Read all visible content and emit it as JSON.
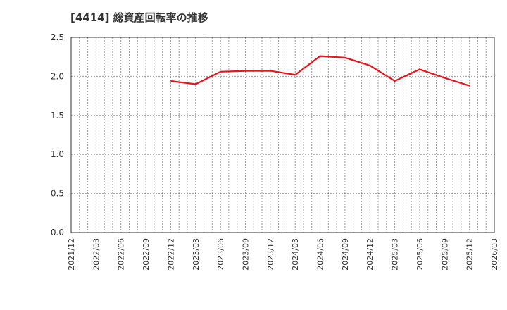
{
  "title": "[4414]  総資産回転率の推移",
  "chart_data": {
    "type": "line",
    "title": "[4414]  総資産回転率の推移",
    "xlabel": "",
    "ylabel": "",
    "ylim": [
      0,
      2.5
    ],
    "yticks": [
      "0.0",
      "0.5",
      "1.0",
      "1.5",
      "2.0",
      "2.5"
    ],
    "xticks": [
      "2021/12",
      "2022/03",
      "2022/06",
      "2022/09",
      "2022/12",
      "2023/03",
      "2023/06",
      "2023/09",
      "2023/12",
      "2024/03",
      "2024/06",
      "2024/09",
      "2024/12",
      "2025/03",
      "2025/06",
      "2025/09",
      "2025/12",
      "2026/03"
    ],
    "grid": true,
    "legend": null,
    "series": [
      {
        "name": "総資産回転率",
        "color": "#e8141c",
        "x": [
          "2022/12",
          "2023/03",
          "2023/06",
          "2023/09",
          "2023/12",
          "2024/03",
          "2024/06",
          "2024/09",
          "2024/12",
          "2025/03",
          "2025/06",
          "2025/09",
          "2025/12"
        ],
        "values": [
          1.94,
          1.9,
          2.06,
          2.07,
          2.07,
          2.02,
          2.26,
          2.24,
          2.14,
          1.94,
          2.09,
          1.98,
          1.88
        ]
      }
    ]
  }
}
